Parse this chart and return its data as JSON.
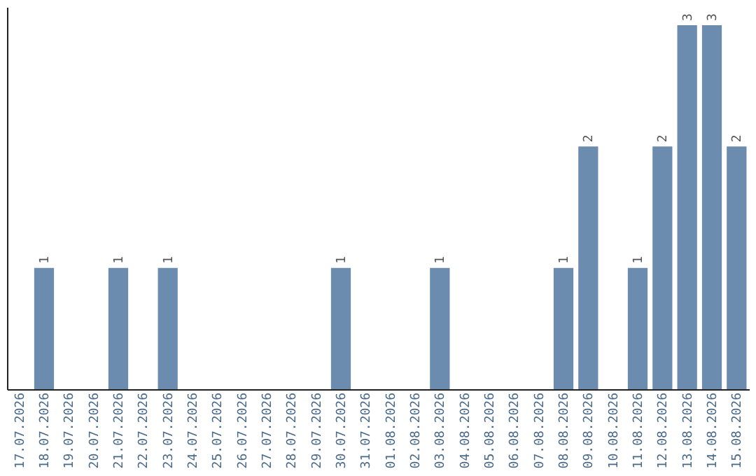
{
  "chart_data": {
    "type": "bar",
    "categories": [
      "17.07.2026",
      "18.07.2026",
      "19.07.2026",
      "20.07.2026",
      "21.07.2026",
      "22.07.2026",
      "23.07.2026",
      "24.07.2026",
      "25.07.2026",
      "26.07.2026",
      "27.07.2026",
      "28.07.2026",
      "29.07.2026",
      "30.07.2026",
      "31.07.2026",
      "01.08.2026",
      "02.08.2026",
      "03.08.2026",
      "04.08.2026",
      "05.08.2026",
      "06.08.2026",
      "07.08.2026",
      "08.08.2026",
      "09.08.2026",
      "10.08.2026",
      "11.08.2026",
      "12.08.2026",
      "13.08.2026",
      "14.08.2026",
      "15.08.2026"
    ],
    "values": [
      null,
      1,
      null,
      null,
      1,
      null,
      1,
      null,
      null,
      null,
      null,
      null,
      null,
      1,
      null,
      null,
      null,
      1,
      null,
      null,
      null,
      null,
      1,
      2,
      null,
      1,
      2,
      3,
      3,
      2
    ],
    "color": "#6b8cae",
    "ylim": [
      0,
      3.15
    ],
    "data_labels": true,
    "tick_labels": "x",
    "grid": false
  }
}
